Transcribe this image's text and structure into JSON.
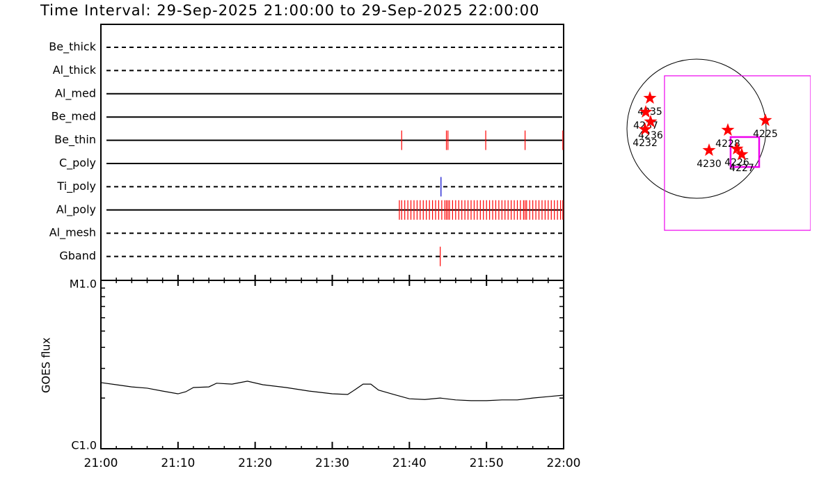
{
  "title": "Time Interval: 29-Sep-2025 21:00:00 to 29-Sep-2025 22:00:00",
  "chart_data": [
    {
      "type": "timeline",
      "xlim": [
        0,
        60
      ],
      "xticks": [
        {
          "value": 0,
          "label": "21:00"
        },
        {
          "value": 10,
          "label": "21:10"
        },
        {
          "value": 20,
          "label": "21:20"
        },
        {
          "value": 30,
          "label": "21:30"
        },
        {
          "value": 40,
          "label": "21:40"
        },
        {
          "value": 50,
          "label": "21:50"
        },
        {
          "value": 60,
          "label": "22:00"
        }
      ],
      "series": [
        {
          "name": "Be_thick",
          "style": "dashed",
          "color": "#ff0000",
          "values": []
        },
        {
          "name": "Al_thick",
          "style": "dashed",
          "color": "#ff0000",
          "values": []
        },
        {
          "name": "Al_med",
          "style": "solid",
          "color": "#ff0000",
          "values": []
        },
        {
          "name": "Be_med",
          "style": "solid",
          "color": "#ff0000",
          "values": []
        },
        {
          "name": "Be_thin",
          "style": "solid",
          "color": "#ff0000",
          "values": [
            39.0,
            44.8,
            45.0,
            49.9,
            55.0,
            59.9
          ]
        },
        {
          "name": "C_poly",
          "style": "solid",
          "color": "#ff0000",
          "values": []
        },
        {
          "name": "Ti_poly",
          "style": "dashed",
          "color": "#0000cc",
          "values": [
            44.1
          ]
        },
        {
          "name": "Al_poly",
          "style": "solid",
          "color": "#ff0000",
          "values": [
            38.7,
            39.0,
            39.4,
            39.8,
            40.2,
            40.6,
            41.0,
            41.4,
            41.8,
            42.2,
            42.6,
            43.0,
            43.4,
            43.8,
            44.2,
            44.6,
            44.8,
            45.0,
            45.2,
            45.6,
            46.0,
            46.4,
            46.8,
            47.2,
            47.6,
            48.0,
            48.4,
            48.8,
            49.2,
            49.6,
            50.0,
            50.4,
            50.8,
            51.2,
            51.6,
            52.0,
            52.4,
            52.8,
            53.2,
            53.6,
            54.0,
            54.4,
            54.8,
            55.0,
            55.2,
            55.6,
            56.0,
            56.4,
            56.8,
            57.2,
            57.6,
            58.0,
            58.4,
            58.8,
            59.2,
            59.6,
            59.9
          ]
        },
        {
          "name": "Al_mesh",
          "style": "dashed",
          "color": "#ff0000",
          "values": []
        },
        {
          "name": "Gband",
          "style": "dashed",
          "color": "#ff0000",
          "values": [
            44.0
          ]
        }
      ]
    },
    {
      "type": "line",
      "ylabel": "GOES flux",
      "log_scale": true,
      "color": "#000000",
      "xlim": [
        0,
        60
      ],
      "ylim": [
        1e-06,
        1e-05
      ],
      "yticks": [
        {
          "value": 1e-06,
          "label": "C1.0"
        },
        {
          "value": 1e-05,
          "label": "M1.0"
        }
      ],
      "x": [
        0,
        2,
        4,
        6,
        8,
        10,
        11,
        12,
        14,
        15,
        17,
        19,
        21,
        24,
        27,
        30,
        32,
        33,
        34,
        35,
        36,
        38,
        40,
        42,
        44,
        46,
        48,
        50,
        52,
        54,
        56,
        58,
        60
      ],
      "values": [
        2.47e-06,
        2.4e-06,
        2.33e-06,
        2.29e-06,
        2.2e-06,
        2.12e-06,
        2.18e-06,
        2.31e-06,
        2.33e-06,
        2.45e-06,
        2.42e-06,
        2.52e-06,
        2.4e-06,
        2.31e-06,
        2.2e-06,
        2.12e-06,
        2.1e-06,
        2.25e-06,
        2.42e-06,
        2.42e-06,
        2.23e-06,
        2.1e-06,
        1.98e-06,
        1.96e-06,
        2e-06,
        1.95e-06,
        1.93e-06,
        1.93e-06,
        1.95e-06,
        1.95e-06,
        2e-06,
        2.04e-06,
        2.08e-06
      ]
    },
    {
      "type": "map",
      "solar_radius": 960,
      "fov": [
        {
          "x": -442,
          "y": 730,
          "w": 2016,
          "h": 2132
        },
        {
          "x": 470,
          "y": -115,
          "w": 394,
          "h": 413
        }
      ],
      "regions": [
        {
          "label": "4235",
          "x": -643,
          "y": 422
        },
        {
          "label": "4237",
          "x": -701,
          "y": 230
        },
        {
          "label": "4236",
          "x": -634,
          "y": 96
        },
        {
          "label": "4232",
          "x": -710,
          "y": -10
        },
        {
          "label": "4228",
          "x": 432,
          "y": -19
        },
        {
          "label": "4225",
          "x": 950,
          "y": 115
        },
        {
          "label": "4230",
          "x": 173,
          "y": -298
        },
        {
          "label": "4226",
          "x": 557,
          "y": -278
        },
        {
          "label": "4227",
          "x": 624,
          "y": -355
        }
      ]
    }
  ]
}
